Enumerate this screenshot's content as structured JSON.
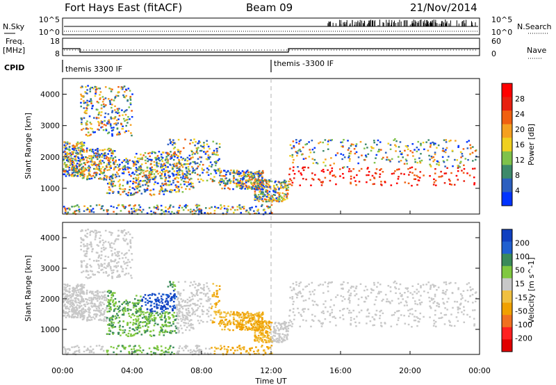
{
  "header": {
    "station": "Fort Hays East (fitACF)",
    "beam": "Beam 09",
    "date": "21/Nov/2014"
  },
  "side_labels": {
    "nsky": "N.Sky",
    "freq": "Freq.",
    "freq_unit": "[MHz]",
    "cpid": "CPID",
    "nsearch": "N.Search",
    "nave": "Nave"
  },
  "cpid_segments": [
    {
      "label": "themis 3300 IF",
      "start_hour": 0
    },
    {
      "label": "themis -3300 IF",
      "start_hour": 12
    }
  ],
  "colors": {
    "power": [
      "#0033ff",
      "#2c5fbf",
      "#3d8a6a",
      "#7fc24a",
      "#f0d020",
      "#f5a020",
      "#f06010",
      "#e82010",
      "#ff0000"
    ],
    "velocity": [
      "#1040c0",
      "#2060d0",
      "#3a8a5a",
      "#80c840",
      "#c8c8c8",
      "#f0c040",
      "#f0a000",
      "#f07020",
      "#ff2020",
      "#e00000"
    ],
    "ground": "#c8c8c8"
  },
  "chart_data": {
    "type": "heatmap",
    "xlabel": "Time UT",
    "x_ticks": [
      "00:00",
      "04:00",
      "08:00",
      "12:00",
      "16:00",
      "20:00",
      "00:00"
    ],
    "xlim_hours": [
      0,
      24
    ],
    "noon_marker_hour": 12,
    "nsky_panel": {
      "left_ticks": [
        "10^5",
        "10^0"
      ],
      "right_ticks": [
        "10^5",
        "10^0"
      ]
    },
    "freq_panel": {
      "left_ticks": [
        18,
        8
      ],
      "right_ticks": [
        60,
        0
      ],
      "frequency_steps": [
        {
          "hour": 0,
          "mhz": 12
        },
        {
          "hour": 1,
          "mhz": 10
        },
        {
          "hour": 13,
          "mhz": 12
        }
      ]
    },
    "panels": [
      {
        "name": "power",
        "ylabel": "Slant Range [km]",
        "ylim": [
          180,
          4500
        ],
        "y_ticks": [
          1000,
          2000,
          3000,
          4000
        ],
        "colorbar_label": "Power [dB]",
        "colorbar_ticks": [
          4,
          8,
          12,
          16,
          20,
          24,
          28
        ],
        "colorbar_range": [
          0,
          30
        ]
      },
      {
        "name": "velocity",
        "ylabel": "Slant Range [km]",
        "ylim": [
          180,
          4500
        ],
        "y_ticks": [
          1000,
          2000,
          3000,
          4000
        ],
        "colorbar_label": "Velocity [m s^-1]",
        "colorbar_ticks": [
          200,
          100,
          50,
          15,
          -15,
          -50,
          -100,
          -200
        ],
        "colorbar_range": [
          -250,
          250
        ]
      }
    ]
  }
}
